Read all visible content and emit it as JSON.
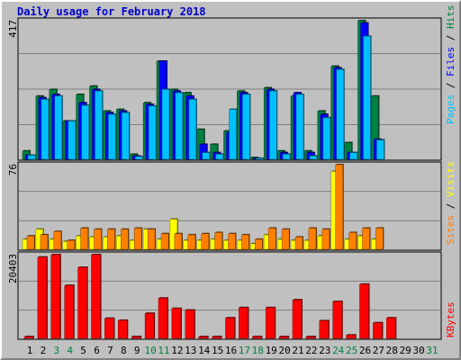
{
  "title": "Daily usage for February 2018",
  "colors": {
    "background": "#c0c0c0",
    "plot_bg": "#c0c0c0",
    "hits": "#008040",
    "files": "#0000ff",
    "pages": "#00c0ff",
    "visits": "#ffff00",
    "sites": "#ff8000",
    "kbytes": "#ff0000",
    "weekend_label": "#008040",
    "label": "#000000",
    "title": "#0000cc"
  },
  "chart_data": [
    {
      "type": "bar",
      "panel": "top",
      "max_label": "417",
      "ylim": [
        0,
        417
      ],
      "legend": [
        {
          "text": "Pages",
          "color": "#00c0ff"
        },
        {
          "text": " / ",
          "color": "#000000"
        },
        {
          "text": "Files",
          "color": "#0000ff"
        },
        {
          "text": " / ",
          "color": "#000000"
        },
        {
          "text": "Hits",
          "color": "#008040"
        }
      ],
      "categories": [
        "1",
        "2",
        "3",
        "4",
        "5",
        "6",
        "7",
        "8",
        "9",
        "10",
        "11",
        "12",
        "13",
        "14",
        "15",
        "16",
        "17",
        "18",
        "19",
        "20",
        "21",
        "22",
        "23",
        "24",
        "25",
        "26",
        "27",
        "28",
        "29",
        "30",
        "31"
      ],
      "series": [
        {
          "name": "Hits",
          "values": [
            25,
            190,
            210,
            115,
            195,
            220,
            145,
            150,
            15,
            170,
            295,
            210,
            200,
            90,
            45,
            85,
            205,
            5,
            215,
            25,
            190,
            25,
            145,
            280,
            50,
            417,
            190,
            0,
            0,
            0,
            0
          ]
        },
        {
          "name": "Files",
          "values": [
            12,
            185,
            195,
            115,
            170,
            210,
            140,
            145,
            10,
            165,
            295,
            205,
            190,
            45,
            20,
            80,
            200,
            3,
            210,
            20,
            200,
            20,
            135,
            275,
            20,
            410,
            60,
            0,
            0,
            0,
            0
          ]
        },
        {
          "name": "Pages",
          "values": [
            12,
            180,
            190,
            115,
            162,
            205,
            135,
            140,
            8,
            160,
            210,
            200,
            180,
            20,
            15,
            150,
            195,
            3,
            205,
            15,
            195,
            10,
            125,
            270,
            20,
            370,
            58,
            0,
            0,
            0,
            0
          ]
        }
      ]
    },
    {
      "type": "bar",
      "panel": "middle",
      "max_label": "76",
      "ylim": [
        0,
        76
      ],
      "legend": [
        {
          "text": "Sites",
          "color": "#ff8000"
        },
        {
          "text": " / ",
          "color": "#000000"
        },
        {
          "text": "Visits",
          "color": "#ffff00"
        }
      ],
      "categories": [
        "1",
        "2",
        "3",
        "4",
        "5",
        "6",
        "7",
        "8",
        "9",
        "10",
        "11",
        "12",
        "13",
        "14",
        "15",
        "16",
        "17",
        "18",
        "19",
        "20",
        "21",
        "22",
        "23",
        "24",
        "25",
        "26",
        "27",
        "28",
        "29",
        "30",
        "31"
      ],
      "series": [
        {
          "name": "Visits",
          "values": [
            9,
            18,
            9,
            7,
            12,
            11,
            11,
            12,
            8,
            18,
            9,
            27,
            8,
            8,
            9,
            8,
            8,
            5,
            13,
            9,
            8,
            8,
            12,
            70,
            9,
            12,
            9,
            0,
            0,
            0,
            0
          ]
        },
        {
          "name": "Sites",
          "values": [
            12,
            13,
            16,
            8,
            19,
            18,
            18,
            18,
            19,
            18,
            14,
            14,
            13,
            14,
            15,
            14,
            13,
            9,
            19,
            18,
            11,
            19,
            18,
            76,
            15,
            19,
            19,
            0,
            0,
            0,
            0
          ]
        }
      ]
    },
    {
      "type": "bar",
      "panel": "bottom",
      "max_label": "20403",
      "ylim": [
        0,
        20403
      ],
      "legend": [
        {
          "text": "KBytes",
          "color": "#ff0000"
        }
      ],
      "categories": [
        "1",
        "2",
        "3",
        "4",
        "5",
        "6",
        "7",
        "8",
        "9",
        "10",
        "11",
        "12",
        "13",
        "14",
        "15",
        "16",
        "17",
        "18",
        "19",
        "20",
        "21",
        "22",
        "23",
        "24",
        "25",
        "26",
        "27",
        "28",
        "29",
        "30",
        "31"
      ],
      "series": [
        {
          "name": "KBytes",
          "values": [
            150,
            19800,
            20403,
            12900,
            17300,
            20403,
            4900,
            4400,
            230,
            6100,
            9800,
            7300,
            6900,
            160,
            190,
            5000,
            7500,
            190,
            7500,
            380,
            9400,
            200,
            4300,
            9000,
            810,
            13200,
            3800,
            5000,
            0,
            0,
            0
          ]
        }
      ]
    }
  ],
  "x_labels": [
    {
      "text": "1",
      "weekend": false
    },
    {
      "text": "2",
      "weekend": false
    },
    {
      "text": "3",
      "weekend": true
    },
    {
      "text": "4",
      "weekend": true
    },
    {
      "text": "5",
      "weekend": false
    },
    {
      "text": "6",
      "weekend": false
    },
    {
      "text": "7",
      "weekend": false
    },
    {
      "text": "8",
      "weekend": false
    },
    {
      "text": "9",
      "weekend": false
    },
    {
      "text": "10",
      "weekend": true
    },
    {
      "text": "11",
      "weekend": true
    },
    {
      "text": "12",
      "weekend": false
    },
    {
      "text": "13",
      "weekend": false
    },
    {
      "text": "14",
      "weekend": false
    },
    {
      "text": "15",
      "weekend": false
    },
    {
      "text": "16",
      "weekend": false
    },
    {
      "text": "17",
      "weekend": true
    },
    {
      "text": "18",
      "weekend": true
    },
    {
      "text": "19",
      "weekend": false
    },
    {
      "text": "20",
      "weekend": false
    },
    {
      "text": "21",
      "weekend": false
    },
    {
      "text": "22",
      "weekend": false
    },
    {
      "text": "23",
      "weekend": false
    },
    {
      "text": "24",
      "weekend": true
    },
    {
      "text": "25",
      "weekend": true
    },
    {
      "text": "26",
      "weekend": false
    },
    {
      "text": "27",
      "weekend": false
    },
    {
      "text": "28",
      "weekend": false
    },
    {
      "text": "29",
      "weekend": false
    },
    {
      "text": "30",
      "weekend": false
    },
    {
      "text": "31",
      "weekend": true
    }
  ]
}
